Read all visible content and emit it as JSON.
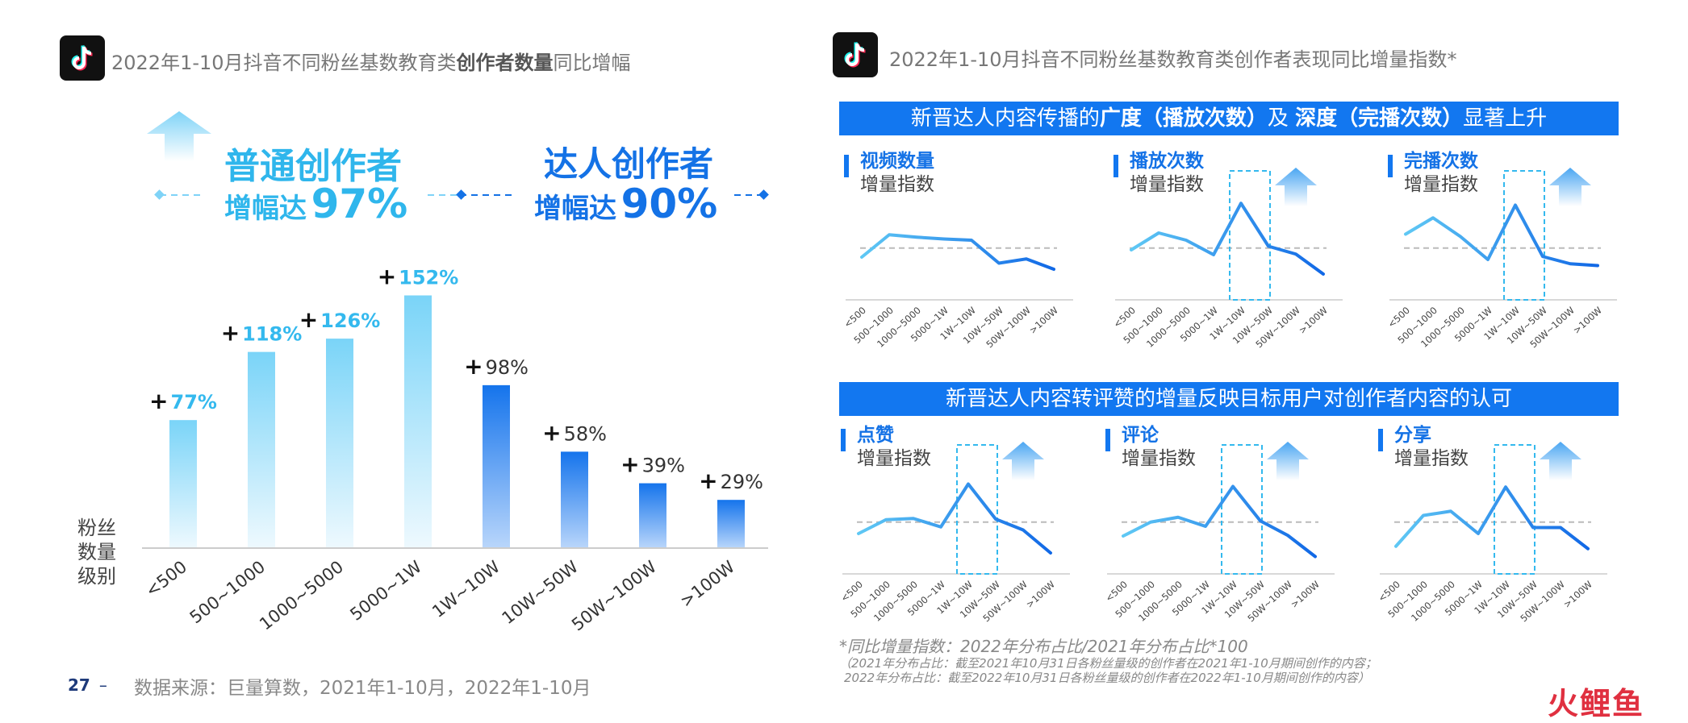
{
  "left": {
    "title_pre": "2022年1-10月抖音不同粉丝基数教育类",
    "title_bold": "创作者数量",
    "title_post": "同比增幅",
    "normal_label": "普通创作者",
    "normal_growth_prefix": "增幅达",
    "normal_growth_value": "97%",
    "talent_label": "达人创作者",
    "talent_growth_prefix": "增幅达",
    "talent_growth_value": "90%",
    "axis_label": "粉丝\n数量\n级别",
    "page_number": "27",
    "page_dash": "–",
    "source": "数据来源：巨量算数，2021年1-10月，2022年1-10月"
  },
  "right": {
    "title": "2022年1-10月抖音不同粉丝基数教育类创作者表现同比增量指数*",
    "banner1_pre": "新晋达人内容传播的",
    "banner1_b1": "广度（播放次数）",
    "banner1_mid": "及 ",
    "banner1_b2": "深度（完播次数）",
    "banner1_post": "显著上升",
    "banner2": "新晋达人内容转评赞的增量反映目标用户对创作者内容的认可",
    "index_label": "增量指数",
    "note1": "*同比增量指数：2022年分布占比/2021年分布占比*100",
    "note2": "（2021年分布占比：截至2021年10月31日各粉丝量级的创作者在2021年1-10月期间创作的内容；",
    "note3": "2022年分布占比：截至2022年10月31日各粉丝量级的创作者在2022年1-10月期间创作的内容）"
  },
  "watermark": "火鲤鱼",
  "colors": {
    "light_blue": "#34b9ee",
    "dark_blue": "#1475ea",
    "banner": "#1277f0"
  },
  "chart_data": [
    {
      "type": "bar",
      "categories": [
        "<500",
        "500~1000",
        "1000~5000",
        "5000~1W",
        "1W~10W",
        "10W~50W",
        "50W~100W",
        ">100W"
      ],
      "values": [
        77,
        118,
        126,
        152,
        98,
        58,
        39,
        29
      ],
      "value_labels": [
        "+77%",
        "+118%",
        "+126%",
        "+152%",
        "+98%",
        "+58%",
        "+39%",
        "+29%"
      ],
      "ylim": [
        0,
        160
      ]
    },
    {
      "type": "line",
      "metric": "视频数量",
      "categories": [
        "<500",
        "500~1000",
        "1000~5000",
        "5000~1W",
        "1W~10W",
        "10W~50W",
        "50W~100W",
        ">100W"
      ],
      "values": [
        100,
        137,
        133,
        130,
        128,
        90,
        97,
        80
      ],
      "ylim": [
        40,
        200
      ],
      "reference": 115,
      "highlight": [],
      "arrow": false
    },
    {
      "type": "line",
      "metric": "播放次数",
      "categories": [
        "<500",
        "500~1000",
        "1000~5000",
        "5000~1W",
        "1W~10W",
        "10W~50W",
        "50W~100W",
        ">100W"
      ],
      "values": [
        112,
        140,
        128,
        104,
        189,
        118,
        105,
        72
      ],
      "ylim": [
        40,
        200
      ],
      "reference": 115,
      "highlight": [
        4,
        5
      ],
      "arrow": true
    },
    {
      "type": "line",
      "metric": "完播次数",
      "categories": [
        "<500",
        "500~1000",
        "1000~5000",
        "5000~1W",
        "1W~10W",
        "10W~50W",
        "50W~100W",
        ">100W"
      ],
      "values": [
        138,
        165,
        134,
        96,
        186,
        101,
        89,
        86
      ],
      "ylim": [
        40,
        200
      ],
      "reference": 115,
      "highlight": [
        4,
        5
      ],
      "arrow": true
    },
    {
      "type": "line",
      "metric": "点赞",
      "categories": [
        "<500",
        "500~1000",
        "1000~5000",
        "5000~1W",
        "1W~10W",
        "10W~50W",
        "50W~100W",
        ">100W"
      ],
      "values": [
        96,
        119,
        121,
        107,
        178,
        120,
        102,
        64
      ],
      "ylim": [
        40,
        200
      ],
      "reference": 115,
      "highlight": [
        4,
        5
      ],
      "arrow": true
    },
    {
      "type": "line",
      "metric": "评论",
      "categories": [
        "<500",
        "500~1000",
        "1000~5000",
        "5000~1W",
        "1W~10W",
        "10W~50W",
        "50W~100W",
        ">100W"
      ],
      "values": [
        92,
        115,
        123,
        108,
        174,
        117,
        93,
        58
      ],
      "ylim": [
        40,
        200
      ],
      "reference": 115,
      "highlight": [
        4,
        5
      ],
      "arrow": true
    },
    {
      "type": "line",
      "metric": "分享",
      "categories": [
        "<500",
        "500~1000",
        "1000~5000",
        "5000~1W",
        "1W~10W",
        "10W~50W",
        "50W~100W",
        ">100W"
      ],
      "values": [
        75,
        126,
        133,
        96,
        173,
        106,
        106,
        71
      ],
      "ylim": [
        40,
        200
      ],
      "reference": 115,
      "highlight": [
        4,
        5
      ],
      "arrow": true
    }
  ]
}
